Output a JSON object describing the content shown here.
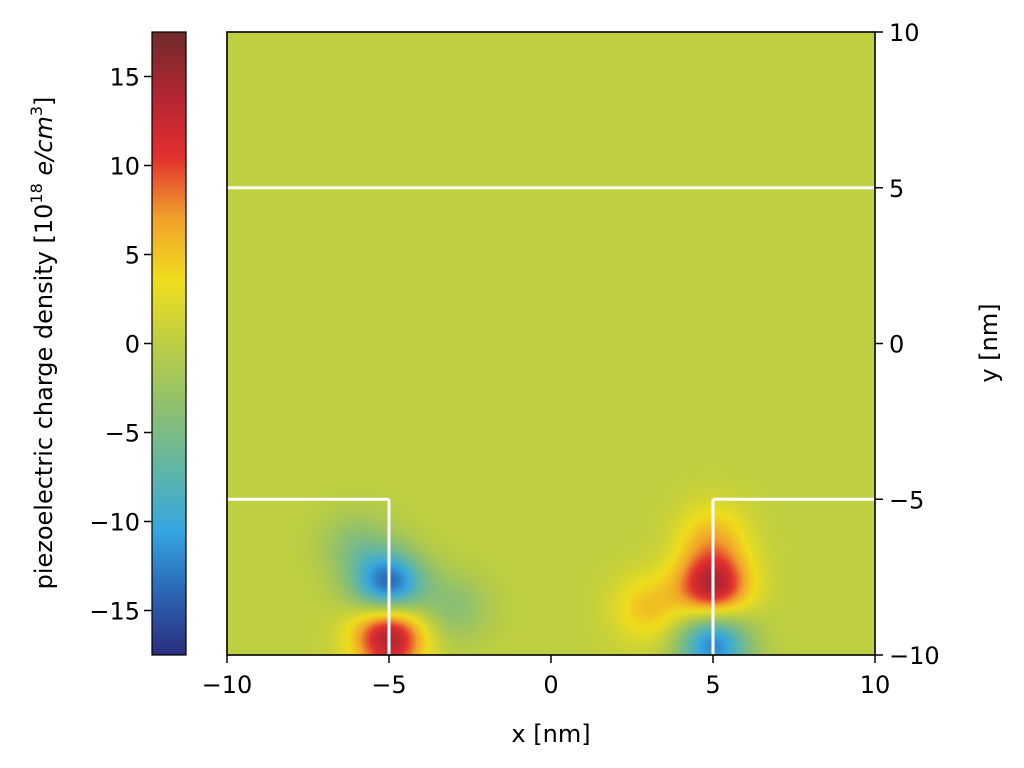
{
  "chart_data": {
    "type": "heatmap",
    "title": "",
    "xlabel": "x [nm]",
    "ylabel": "y [nm]",
    "xlim": [
      -10,
      10
    ],
    "ylim": [
      -10,
      10
    ],
    "x_ticks": [
      -10,
      -5,
      0,
      5,
      10
    ],
    "x_tick_labels": [
      "−10",
      "−5",
      "0",
      "5",
      "10"
    ],
    "y_ticks": [
      -10,
      -5,
      0,
      5,
      10
    ],
    "y_tick_labels": [
      "−10",
      "−5",
      "0",
      "5",
      "10"
    ],
    "y_axis_side": "right",
    "grid": false,
    "colorbar": {
      "label_main": "piezoelectric charge density [10",
      "label_exp": "18",
      "label_unit": " e/cm",
      "label_exp2": "3",
      "label_close": "]",
      "range": [
        -17.5,
        17.5
      ],
      "ticks": [
        -15,
        -10,
        -5,
        0,
        5,
        10,
        15
      ],
      "tick_labels": [
        "−15",
        "−10",
        "−5",
        "0",
        "5",
        "10",
        "15"
      ],
      "placement": "left",
      "colormap": [
        "#2b2d7e",
        "#2b66b3",
        "#35a6e0",
        "#62b6a4",
        "#8fc06e",
        "#bdce42",
        "#efde1c",
        "#f1a22b",
        "#e2302f",
        "#b12532",
        "#6e2b2b"
      ]
    },
    "field": {
      "background_value": 0.2,
      "sources": [
        {
          "x": -5,
          "y": -7.8,
          "value": -15
        },
        {
          "x": -5,
          "y": -9.3,
          "value": 15
        },
        {
          "x": -4.9,
          "y": -11.2,
          "value": 5
        },
        {
          "x": -6.0,
          "y": -6.5,
          "value": -4
        },
        {
          "x": 5,
          "y": -7.8,
          "value": 14
        },
        {
          "x": 5,
          "y": -9.6,
          "value": -13
        },
        {
          "x": 5,
          "y": -6.2,
          "value": 5
        },
        {
          "x": 6.0,
          "y": -11.5,
          "value": -4
        },
        {
          "x": -3.0,
          "y": -8.5,
          "value": -4
        },
        {
          "x": 3.0,
          "y": -8.5,
          "value": 5
        }
      ]
    },
    "boundary_lines": {
      "color": "#ffffff",
      "segments": [
        {
          "x": [
            -10,
            10
          ],
          "y": [
            5,
            5
          ]
        },
        {
          "x": [
            -10,
            -5
          ],
          "y": [
            -5,
            -5
          ]
        },
        {
          "x": [
            -5,
            -5
          ],
          "y": [
            -5,
            -10
          ]
        },
        {
          "x": [
            5,
            10
          ],
          "y": [
            -5,
            -5
          ]
        },
        {
          "x": [
            5,
            5
          ],
          "y": [
            -5,
            -10
          ]
        }
      ]
    }
  }
}
